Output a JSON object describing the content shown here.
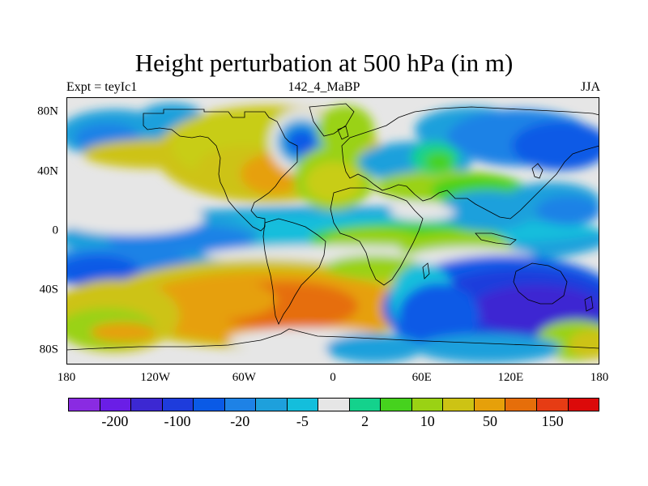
{
  "title": "Height perturbation at 500 hPa (in m)",
  "subtitle_left": "Expt = teyIc1",
  "subtitle_center": "142_4_MaBP",
  "subtitle_right": "JJA",
  "lat_ticks": [
    {
      "label": "80N",
      "lat": 80
    },
    {
      "label": "40N",
      "lat": 40
    },
    {
      "label": "0",
      "lat": 0
    },
    {
      "label": "40S",
      "lat": -40
    },
    {
      "label": "80S",
      "lat": -80
    }
  ],
  "lon_ticks": [
    {
      "label": "180",
      "lon": -180
    },
    {
      "label": "120W",
      "lon": -120
    },
    {
      "label": "60W",
      "lon": -60
    },
    {
      "label": "0",
      "lon": 0
    },
    {
      "label": "60E",
      "lon": 60
    },
    {
      "label": "120E",
      "lon": 120
    },
    {
      "label": "180",
      "lon": 180
    }
  ],
  "colorbar": {
    "colors": [
      "#8a2be2",
      "#6a1ee6",
      "#3c28d2",
      "#1e3cdc",
      "#0a5ae6",
      "#1e82e6",
      "#1ea0dc",
      "#14bedc",
      "#e6e6e6",
      "#14d28c",
      "#46d21e",
      "#9ad214",
      "#cdc314",
      "#e6a00a",
      "#e66e0a",
      "#e63c14",
      "#dc0a0a"
    ],
    "labels": [
      {
        "text": "-200",
        "boundary": 1
      },
      {
        "text": "-100",
        "boundary": 3
      },
      {
        "text": "-20",
        "boundary": 5
      },
      {
        "text": "-5",
        "boundary": 7
      },
      {
        "text": "2",
        "boundary": 9
      },
      {
        "text": "10",
        "boundary": 11
      },
      {
        "text": "50",
        "boundary": 13
      },
      {
        "text": "150",
        "boundary": 15
      }
    ]
  },
  "field_colors": {
    "white": "#e6e6e6",
    "yellow_green": "#c8cd14",
    "green": "#46d21e",
    "lime": "#9ad214",
    "olive": "#cdc314",
    "orange": "#e6a00a",
    "dark_orange": "#e66e0a",
    "light_blue": "#1ea0dc",
    "cyan": "#14bedc",
    "mid_blue": "#1e82e6",
    "blue": "#0a5ae6",
    "deep_blue": "#1e3cdc",
    "indigo": "#3c28d2",
    "teal": "#14d28c"
  }
}
